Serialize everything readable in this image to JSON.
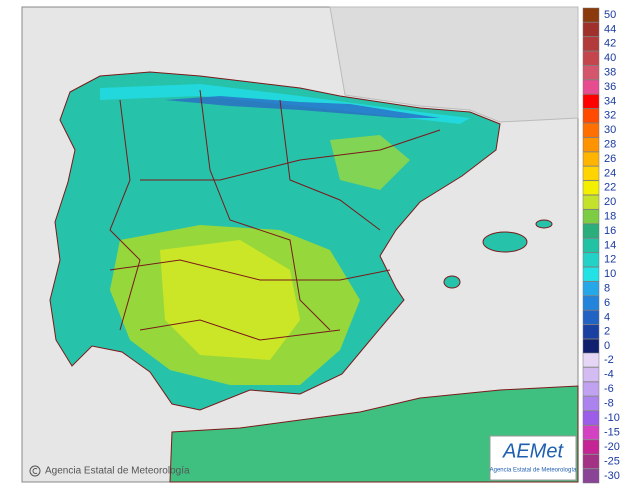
{
  "legend": {
    "items": [
      {
        "label": 50,
        "color": "#8b3a0e"
      },
      {
        "label": 44,
        "color": "#a0302c"
      },
      {
        "label": 42,
        "color": "#b23a3a"
      },
      {
        "label": 40,
        "color": "#c4464c"
      },
      {
        "label": 38,
        "color": "#d4566c"
      },
      {
        "label": 36,
        "color": "#e84c90"
      },
      {
        "label": 34,
        "color": "#ff0000"
      },
      {
        "label": 32,
        "color": "#ff4a00"
      },
      {
        "label": 30,
        "color": "#ff7000"
      },
      {
        "label": 28,
        "color": "#ff9400"
      },
      {
        "label": 26,
        "color": "#ffb400"
      },
      {
        "label": 24,
        "color": "#ffd400"
      },
      {
        "label": 22,
        "color": "#f2f000"
      },
      {
        "label": 20,
        "color": "#c4e22c"
      },
      {
        "label": 18,
        "color": "#7ccc44"
      },
      {
        "label": 16,
        "color": "#2aae7c"
      },
      {
        "label": 14,
        "color": "#22c2a4"
      },
      {
        "label": 12,
        "color": "#22d2c6"
      },
      {
        "label": 10,
        "color": "#22e2e6"
      },
      {
        "label": 8,
        "color": "#26a8e8"
      },
      {
        "label": 6,
        "color": "#2484dc"
      },
      {
        "label": 4,
        "color": "#2262c2"
      },
      {
        "label": 2,
        "color": "#1a40a2"
      },
      {
        "label": 0,
        "color": "#10206e"
      },
      {
        "label": -2,
        "color": "#e4d6f4"
      },
      {
        "label": -4,
        "color": "#d2bcf2"
      },
      {
        "label": -6,
        "color": "#c0a2f0"
      },
      {
        "label": -8,
        "color": "#ac82ee"
      },
      {
        "label": -10,
        "color": "#9c5ee8"
      },
      {
        "label": -15,
        "color": "#d442c4"
      },
      {
        "label": -20,
        "color": "#c42494"
      },
      {
        "label": -25,
        "color": "#a43284"
      },
      {
        "label": -30,
        "color": "#8a4496"
      }
    ]
  },
  "credit": "Agencia Estatal de Meteorología",
  "logo": {
    "name": "AEMet",
    "subtitle": "Agencia Estatal de Meteorología"
  }
}
